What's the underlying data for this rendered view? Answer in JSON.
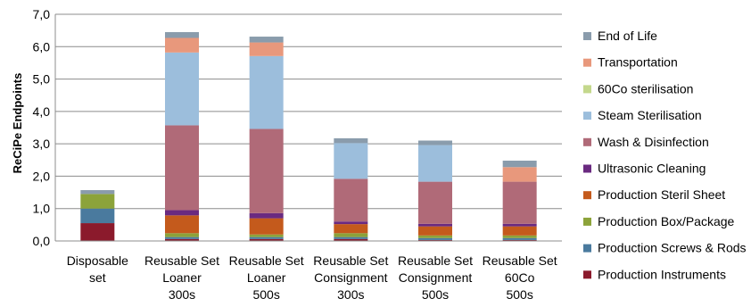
{
  "chart_data": {
    "type": "bar",
    "stacked": true,
    "ylabel": "ReCiPe Endpoints",
    "ylim": [
      0,
      7
    ],
    "yticks": [
      "0,0",
      "1,0",
      "2,0",
      "3,0",
      "4,0",
      "5,0",
      "6,0",
      "7,0"
    ],
    "grid": true,
    "legend_position": "right",
    "categories": [
      [
        "Disposable",
        "set"
      ],
      [
        "Reusable Set",
        "Loaner",
        "300s"
      ],
      [
        "Reusable Set",
        "Loaner",
        "500s"
      ],
      [
        "Reusable Set",
        "Consignment",
        "300s"
      ],
      [
        "Reusable Set",
        "Consignment",
        "500s"
      ],
      [
        "Reusable Set",
        "60Co",
        "500s"
      ]
    ],
    "series": [
      {
        "name": "Production Instruments",
        "color": "#8B1A2C",
        "values": [
          0.55,
          0.06,
          0.06,
          0.06,
          0.03,
          0.03
        ]
      },
      {
        "name": "Production Screws & Rods",
        "color": "#4A7A9E",
        "values": [
          0.45,
          0.06,
          0.06,
          0.06,
          0.06,
          0.06
        ]
      },
      {
        "name": "Production Box/Package",
        "color": "#8CA33A",
        "values": [
          0.45,
          0.12,
          0.08,
          0.12,
          0.08,
          0.08
        ]
      },
      {
        "name": "Production Steril Sheet",
        "color": "#C45A1C",
        "values": [
          0.0,
          0.55,
          0.5,
          0.28,
          0.28,
          0.28
        ]
      },
      {
        "name": "Ultrasonic Cleaning",
        "color": "#6A2A80",
        "values": [
          0.0,
          0.16,
          0.16,
          0.08,
          0.08,
          0.08
        ]
      },
      {
        "name": "Wash & Disinfection",
        "color": "#B06A78",
        "values": [
          0.0,
          2.62,
          2.6,
          1.32,
          1.3,
          1.3
        ]
      },
      {
        "name": "Steam Sterilisation",
        "color": "#9CBEDC",
        "values": [
          0.0,
          2.25,
          2.25,
          1.1,
          1.13,
          0.0
        ]
      },
      {
        "name": "60Co sterilisation",
        "color": "#C4D88C",
        "values": [
          0.0,
          0.0,
          0.0,
          0.0,
          0.0,
          0.0
        ]
      },
      {
        "name": "Transportation",
        "color": "#E8987C",
        "values": [
          0.0,
          0.45,
          0.42,
          0.0,
          0.0,
          0.45
        ]
      },
      {
        "name": "End of Life",
        "color": "#8A9CAC",
        "values": [
          0.12,
          0.18,
          0.18,
          0.15,
          0.14,
          0.2
        ]
      }
    ]
  }
}
